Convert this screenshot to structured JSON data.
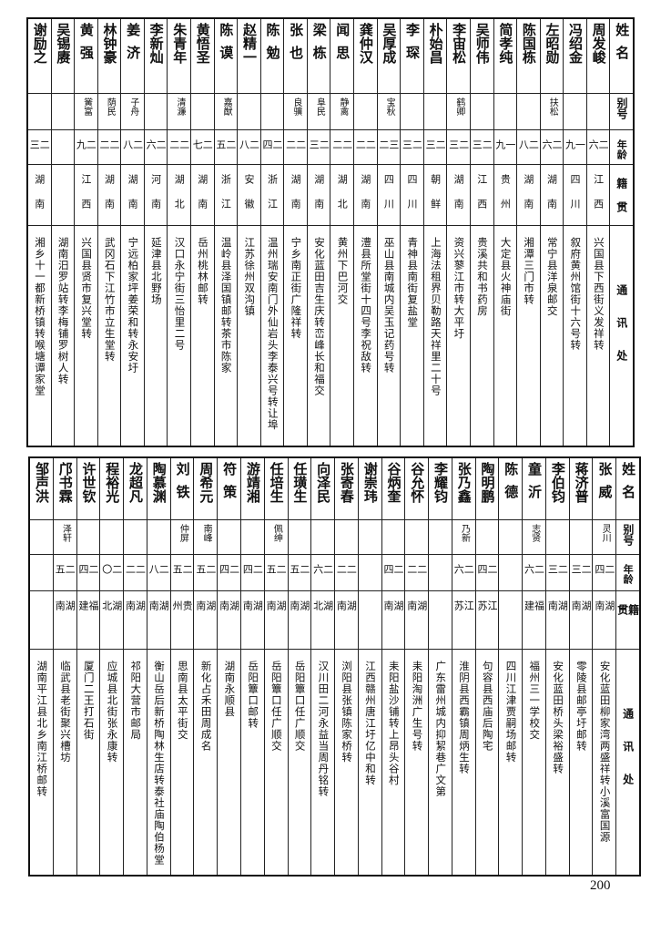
{
  "header": {
    "name": "姓名",
    "alias": "别号",
    "age": "年龄",
    "origin": "籍贯",
    "address": "通讯处"
  },
  "top_table": [
    {
      "name": "周发峻",
      "alias": "",
      "age": "二六",
      "origin": "江西",
      "address": "兴国县下西街义发祥转"
    },
    {
      "name": "冯绍金",
      "alias": "",
      "age": "一九",
      "origin": "四川",
      "address": "叙府黄州馆街十六号转"
    },
    {
      "name": "左昭勋",
      "alias": "扶松",
      "age": "二六",
      "origin": "湖南",
      "address": "常宁县洋泉邮交"
    },
    {
      "name": "陈国栋",
      "alias": "",
      "age": "二八",
      "origin": "湖南",
      "address": "湘潭三门市转"
    },
    {
      "name": "简孝纯",
      "alias": "",
      "age": "一九",
      "origin": "贵州",
      "address": "大定县火神庙街"
    },
    {
      "name": "吴师伟",
      "alias": "",
      "age": "二三",
      "origin": "江西",
      "address": "贵溪共和书药房"
    },
    {
      "name": "李宙松",
      "alias": "鹤卿",
      "age": "二三",
      "origin": "湖南",
      "address": "资兴蓼江市转大平圩"
    },
    {
      "name": "朴始昌",
      "alias": "",
      "age": "二三",
      "origin": "朝鲜",
      "address": "上海法租界贝勒路天祥里二十号"
    },
    {
      "name": "李琛",
      "alias": "",
      "age": "二三",
      "origin": "四川",
      "address": "青神县南街复盐堂"
    },
    {
      "name": "吴厚成",
      "alias": "宝秋",
      "age": "三二",
      "origin": "四川",
      "address": "巫山县南城内吴玉记药号转"
    },
    {
      "name": "龚仲汉",
      "alias": "",
      "age": "二二",
      "origin": "湖南",
      "address": "澧县所堂街十四号李祝敌转"
    },
    {
      "name": "闻思",
      "alias": "静禽",
      "age": "二二",
      "origin": "湖北",
      "address": "黄州下巴河交"
    },
    {
      "name": "梁栋",
      "alias": "阜民",
      "age": "二三",
      "origin": "湖南",
      "address": "安化蓝田吉生庆转峦峰长和福交"
    },
    {
      "name": "张也",
      "alias": "良骥",
      "age": "二二",
      "origin": "湖南",
      "address": "宁乡南正街广隆祥转"
    },
    {
      "name": "陈勉",
      "alias": "",
      "age": "二四",
      "origin": "浙江",
      "address": "温州瑞安南门外仙岩头李泰兴号转让埠"
    },
    {
      "name": "赵精一",
      "alias": "",
      "age": "二八",
      "origin": "安徽",
      "address": "江苏徐州双沟镇"
    },
    {
      "name": "陈谟",
      "alias": "嘉猷",
      "age": "二五",
      "origin": "浙江",
      "address": "温岭县泽国镇邮转茶市陈家"
    },
    {
      "name": "黄悟圣",
      "alias": "",
      "age": "二七",
      "origin": "湖南",
      "address": "岳州桃林邮转"
    },
    {
      "name": "朱青年",
      "alias": "清濂",
      "age": "二二",
      "origin": "湖北",
      "address": "汉口永宁街三怡里二号"
    },
    {
      "name": "李新灿",
      "alias": "",
      "age": "二六",
      "origin": "河南",
      "address": "延津县北野场"
    },
    {
      "name": "姜济",
      "alias": "子舟",
      "age": "二八",
      "origin": "湖南",
      "address": "宁远柏家坪姜荣和转永安圩"
    },
    {
      "name": "林钟豪",
      "alias": "荫民",
      "age": "二二",
      "origin": "湖南",
      "address": "武冈石下江竹市立生堂转"
    },
    {
      "name": "黄强",
      "alias": "黉富",
      "age": "二九",
      "origin": "江西",
      "address": "兴国县贤市复兴堂转"
    },
    {
      "name": "吴锡赓",
      "alias": "",
      "age": "",
      "origin": "",
      "address": "湖南汨罗站转李梅铺罗树人转"
    },
    {
      "name": "谢励之",
      "alias": "",
      "age": "二三",
      "origin": "湖南",
      "address": "湘乡十一都新桥镇转喉塘谭家堂"
    }
  ],
  "bottom_table": [
    {
      "name": "张威",
      "alias": "灵川",
      "age": "二四",
      "origin": "湖南",
      "address": "安化蓝田柳家湾两盛祥转小溪富国源"
    },
    {
      "name": "蒋济普",
      "alias": "",
      "age": "二三",
      "origin": "湖南",
      "address": "零陵县邮亭圩邮转"
    },
    {
      "name": "李伯钧",
      "alias": "",
      "age": "二三",
      "origin": "湖南",
      "address": "安化蓝田桥头梁裕盛转"
    },
    {
      "name": "童沂",
      "alias": "志贤",
      "age": "二六",
      "origin": "福建",
      "address": "福州三一学校交"
    },
    {
      "name": "陈德",
      "alias": "",
      "age": "",
      "origin": "",
      "address": "四川江津贾嗣场邮转"
    },
    {
      "name": "陶明鹏",
      "alias": "",
      "age": "二四",
      "origin": "江苏",
      "address": "句容县西庙后陶宅"
    },
    {
      "name": "张乃鑫",
      "alias": "乃新",
      "age": "二六",
      "origin": "江苏",
      "address": "淮阴县西霸镇周炳生转"
    },
    {
      "name": "李耀钧",
      "alias": "",
      "age": "",
      "origin": "",
      "address": "广东雷州城内抑絜巷广文第"
    },
    {
      "name": "谷允怀",
      "alias": "",
      "age": "二二",
      "origin": "湖南",
      "address": "耒阳淘洲广生号转"
    },
    {
      "name": "谷炳奎",
      "alias": "",
      "age": "二四",
      "origin": "湖南",
      "address": "耒阳盐沙铺转上昂头谷村"
    },
    {
      "name": "谢崇玮",
      "alias": "",
      "age": "",
      "origin": "",
      "address": "江西赣州唐江圩亿中和转"
    },
    {
      "name": "张寄春",
      "alias": "",
      "age": "二二",
      "origin": "湖南",
      "address": "浏阳县张镇陈家桥转"
    },
    {
      "name": "向泽民",
      "alias": "",
      "age": "二六",
      "origin": "湖北",
      "address": "汉川田二河永益当周丹铭转"
    },
    {
      "name": "任璜生",
      "alias": "",
      "age": "二五",
      "origin": "湖南",
      "address": "岳阳簟口任广顺交"
    },
    {
      "name": "任培生",
      "alias": "佩绅",
      "age": "二五",
      "origin": "湖南",
      "address": "岳阳簟口任广顺交"
    },
    {
      "name": "游靖湘",
      "alias": "",
      "age": "二四",
      "origin": "湖南",
      "address": "岳阳簟口邮转"
    },
    {
      "name": "符策",
      "alias": "",
      "age": "二四",
      "origin": "湖南",
      "address": "湖南永顺县"
    },
    {
      "name": "周希元",
      "alias": "南峰",
      "age": "二五",
      "origin": "湖南",
      "address": "新化占禾田周成名"
    },
    {
      "name": "刘铁",
      "alias": "仲屏",
      "age": "二五",
      "origin": "贵州",
      "address": "思南县太平街交"
    },
    {
      "name": "陶慕渊",
      "alias": "",
      "age": "二八",
      "origin": "湖南",
      "address": "衡山岳后新桥陶林生店转泰社庙陶伯杨堂"
    },
    {
      "name": "龙超凡",
      "alias": "",
      "age": "二二",
      "origin": "湖南",
      "address": "祁阳大营市邮局"
    },
    {
      "name": "程裕光",
      "alias": "",
      "age": "二〇",
      "origin": "湖北",
      "address": "应城县北街张永康转"
    },
    {
      "name": "许世钦",
      "alias": "",
      "age": "二四",
      "origin": "福建",
      "address": "厦门二王打石街"
    },
    {
      "name": "邝书霖",
      "alias": "泽轩",
      "age": "二五",
      "origin": "湖南",
      "address": "临武县老街聚兴槽坊"
    },
    {
      "name": "邹声洪",
      "alias": "",
      "age": "",
      "origin": "",
      "address": "湖南平江县北乡南江桥邮转"
    }
  ],
  "page_number": "200"
}
